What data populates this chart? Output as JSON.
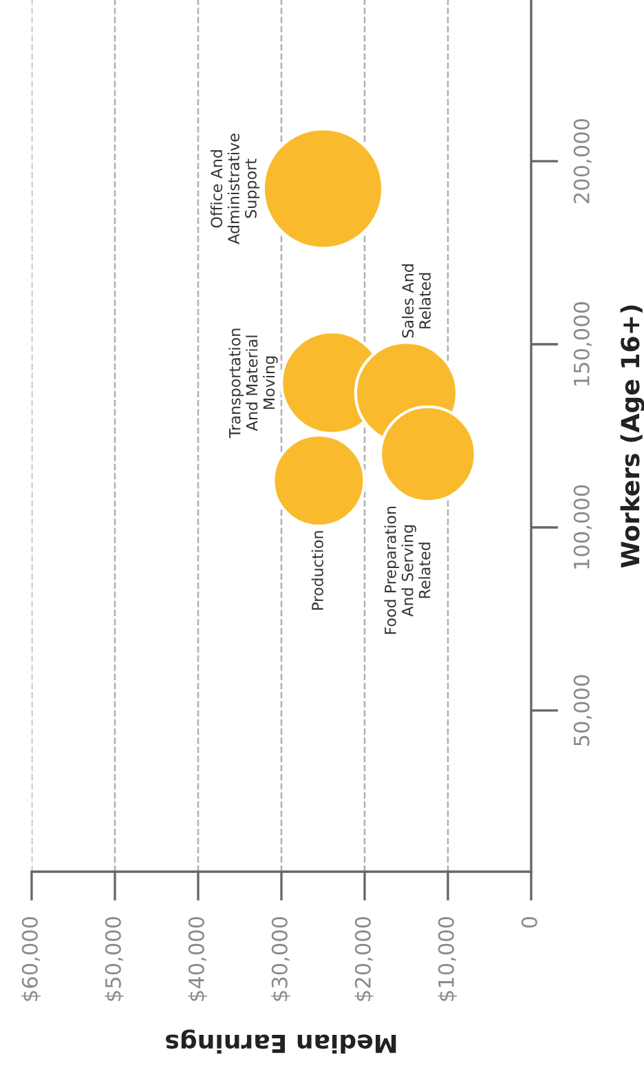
{
  "chart_data": {
    "type": "bubble",
    "xlabel": "Median Earnings",
    "ylabel": "Workers (Age 16+)",
    "series": [
      {
        "name": "Office And\nAdministrative\nSupport",
        "color": "#f9bb2d",
        "x": [
          25000
        ],
        "values": [
          192500
        ],
        "sizes": [
          1
        ]
      },
      {
        "name": "Transportation\nAnd Material\nMoving",
        "color": "#f9bb2d",
        "x": [
          23900
        ],
        "values": [
          139500
        ],
        "sizes": [
          0.72
        ]
      },
      {
        "name": "Production",
        "color": "#f9bb2d",
        "x": [
          25500
        ],
        "values": [
          112800
        ],
        "sizes": [
          0.58
        ]
      },
      {
        "name": "Sales And\nRelated",
        "color": "#f9bb2d",
        "x": [
          15000
        ],
        "values": [
          136700
        ],
        "sizes": [
          0.72
        ]
      },
      {
        "name": "Food Preparation\nAnd Serving\nRelated",
        "color": "#f9bb2d",
        "x": [
          12400
        ],
        "values": [
          120000
        ],
        "sizes": [
          0.63
        ]
      }
    ],
    "xlim": [
      60000,
      0
    ],
    "xticks": [
      {
        "value": 60000,
        "label": "$60,000"
      },
      {
        "value": 50000,
        "label": "$50,000"
      },
      {
        "value": 40000,
        "label": "$40,000"
      },
      {
        "value": 30000,
        "label": "$30,000"
      },
      {
        "value": 20000,
        "label": "$20,000"
      },
      {
        "value": 10000,
        "label": "$10,000"
      },
      0
    ],
    "ylim": [
      6000,
      244000
    ],
    "yticks": [
      {
        "value": 50000,
        "label": "50,000"
      },
      {
        "value": 100000,
        "label": "100,000"
      },
      {
        "value": 150000,
        "label": "150,000"
      },
      {
        "value": 200000,
        "label": "200,000"
      }
    ],
    "grid": "x"
  }
}
